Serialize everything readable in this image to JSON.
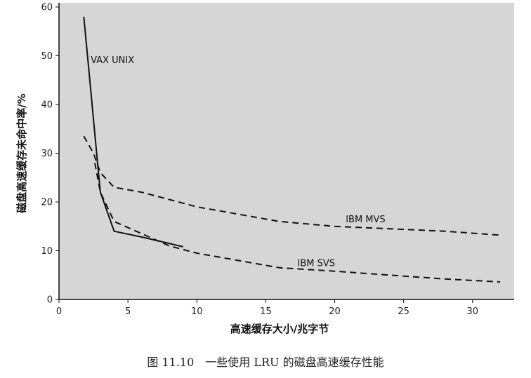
{
  "chart_data": {
    "type": "line",
    "title": "",
    "xlabel": "高速缓存大小/兆字节",
    "ylabel": "磁盘高速缓存未命中率/%",
    "xlim": [
      0,
      32
    ],
    "ylim": [
      0,
      60
    ],
    "xticks": [
      0,
      5,
      10,
      15,
      20,
      25,
      30
    ],
    "yticks": [
      0,
      10,
      20,
      30,
      40,
      50,
      60
    ],
    "grid": false,
    "series": [
      {
        "name": "VAX UNIX",
        "style": "solid",
        "points": [
          [
            1.8,
            58
          ],
          [
            2.2,
            46
          ],
          [
            2.6,
            34
          ],
          [
            2.8,
            28
          ],
          [
            3.0,
            22
          ],
          [
            3.5,
            18
          ],
          [
            4.0,
            14
          ],
          [
            6.0,
            12.8
          ],
          [
            8.0,
            11.5
          ],
          [
            9.0,
            10.8
          ]
        ]
      },
      {
        "name": "IBM MVS",
        "style": "dashed",
        "points": [
          [
            1.8,
            33.5
          ],
          [
            2.5,
            30
          ],
          [
            3.0,
            26
          ],
          [
            4.0,
            23
          ],
          [
            6.0,
            22
          ],
          [
            8.0,
            20.5
          ],
          [
            10.0,
            19
          ],
          [
            12.0,
            18
          ],
          [
            14.0,
            17
          ],
          [
            16.0,
            16
          ],
          [
            20.0,
            15
          ],
          [
            24.0,
            14.5
          ],
          [
            28.0,
            14
          ],
          [
            32.0,
            13.2
          ]
        ]
      },
      {
        "name": "IBM SVS",
        "style": "dashed",
        "points": [
          [
            2.6,
            28
          ],
          [
            3.0,
            22
          ],
          [
            3.5,
            19
          ],
          [
            4.0,
            16
          ],
          [
            6.0,
            13.5
          ],
          [
            8.0,
            11
          ],
          [
            10.0,
            9.5
          ],
          [
            12.0,
            8.5
          ],
          [
            14.0,
            7.5
          ],
          [
            16.0,
            6.5
          ],
          [
            20.0,
            5.8
          ],
          [
            24.0,
            5.0
          ],
          [
            28.0,
            4.2
          ],
          [
            32.0,
            3.6
          ]
        ]
      }
    ],
    "series_label_pos": [
      {
        "x": 2.3,
        "y": 48.5
      },
      {
        "x": 20.8,
        "y": 15.8
      },
      {
        "x": 17.3,
        "y": 6.8
      }
    ]
  },
  "caption": "图 11.10　一些使用 LRU 的磁盘高速缓存性能",
  "colors": {
    "plot_bg": "#d6d6d6",
    "line": "#111111",
    "axis": "#111111"
  }
}
